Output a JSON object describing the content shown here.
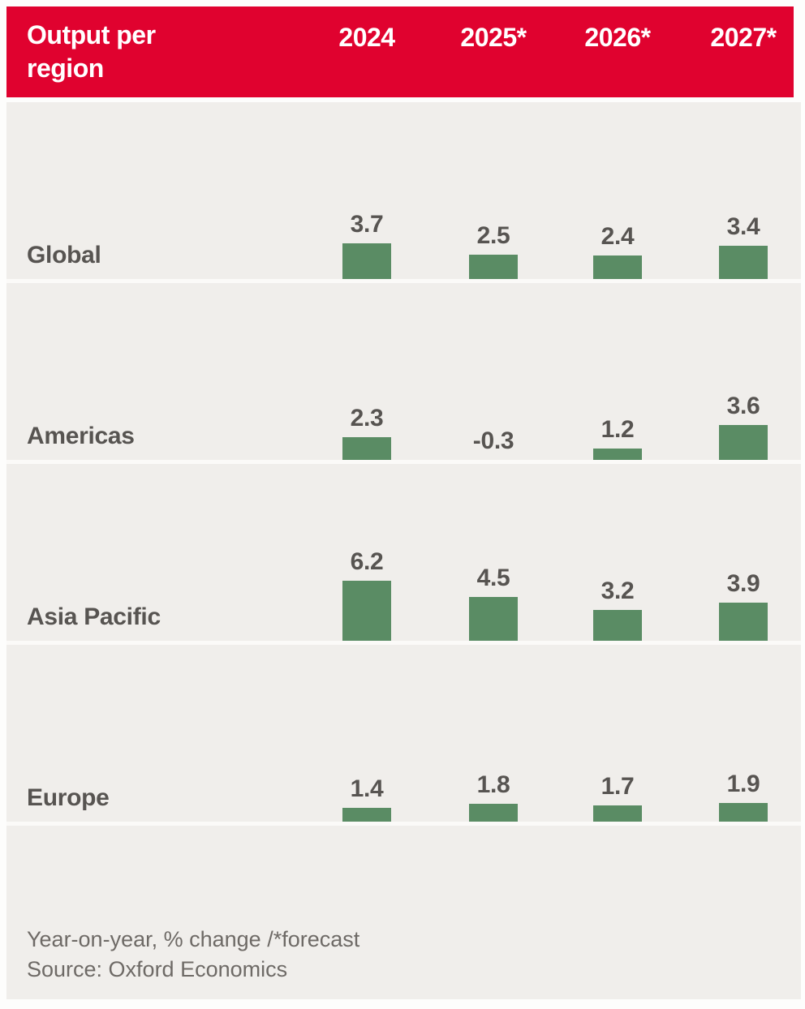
{
  "header": {
    "title": "Output per region",
    "columns": [
      "2024",
      "2025*",
      "2026*",
      "2027*"
    ]
  },
  "chart_data": {
    "type": "bar",
    "title": "Output per region",
    "categories": [
      "2024",
      "2025*",
      "2026*",
      "2027*"
    ],
    "series": [
      {
        "name": "Global",
        "values": [
          3.7,
          2.5,
          2.4,
          3.4
        ]
      },
      {
        "name": "Americas",
        "values": [
          2.3,
          -0.3,
          1.2,
          3.6
        ]
      },
      {
        "name": "Asia Pacific",
        "values": [
          6.2,
          4.5,
          3.2,
          3.9
        ]
      },
      {
        "name": "Europe",
        "values": [
          1.4,
          1.8,
          1.7,
          1.9
        ]
      }
    ],
    "ylabel": "Year-on-year, % change",
    "value_labels": true,
    "grid": false,
    "legend_position": "none",
    "note": "* = forecast"
  },
  "footer": {
    "note": "Year-on-year, % change /*forecast",
    "source": "Source: Oxford Economics"
  },
  "colors": {
    "header_bg": "#e0022f",
    "header_text": "#ffffff",
    "bar_positive": "#5a8c64",
    "bar_negative": "#c0143a",
    "row_bg": "#f0eeeb",
    "separator": "#fbfaf8",
    "label_text": "#575451",
    "footer_text": "#6e6a66",
    "page_bg": "#fdfdfc"
  }
}
